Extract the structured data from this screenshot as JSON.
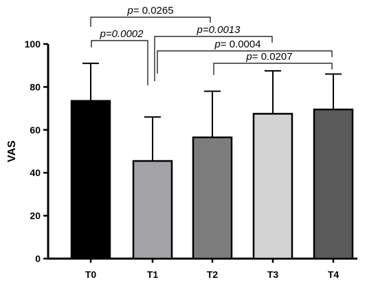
{
  "chart_data": {
    "type": "bar",
    "categories": [
      "T0",
      "T1",
      "T2",
      "T3",
      "T4"
    ],
    "values": [
      73.5,
      45.5,
      56.5,
      67.5,
      69.5
    ],
    "errors": [
      17.5,
      20.5,
      21.5,
      20,
      16.5
    ],
    "colors": [
      "#000000",
      "#a3a3a7",
      "#7c7c7c",
      "#d3d3d3",
      "#5a5a5a"
    ],
    "xlabel": "",
    "ylabel": "VAS",
    "ylim": [
      0,
      100
    ],
    "yticks": [
      0,
      20,
      40,
      60,
      80,
      100
    ],
    "grid": false,
    "annotations": [
      {
        "from": "T0",
        "to": "T2",
        "p_prefix": "p",
        "p_value": "= 0.0265",
        "italic_value": false
      },
      {
        "from": "T0",
        "to": "T1",
        "p_prefix": "p",
        "p_value": "=0.0002",
        "italic_value": true
      },
      {
        "from": "T1",
        "to": "T3",
        "p_prefix": "p",
        "p_value": "=0.0013",
        "italic_value": true
      },
      {
        "from": "T1",
        "to": "T4",
        "p_prefix": "p",
        "p_value": "= 0.0004",
        "italic_value": false
      },
      {
        "from": "T2",
        "to": "T4",
        "p_prefix": "p",
        "p_value": "= 0.0207",
        "italic_value": false
      }
    ]
  }
}
